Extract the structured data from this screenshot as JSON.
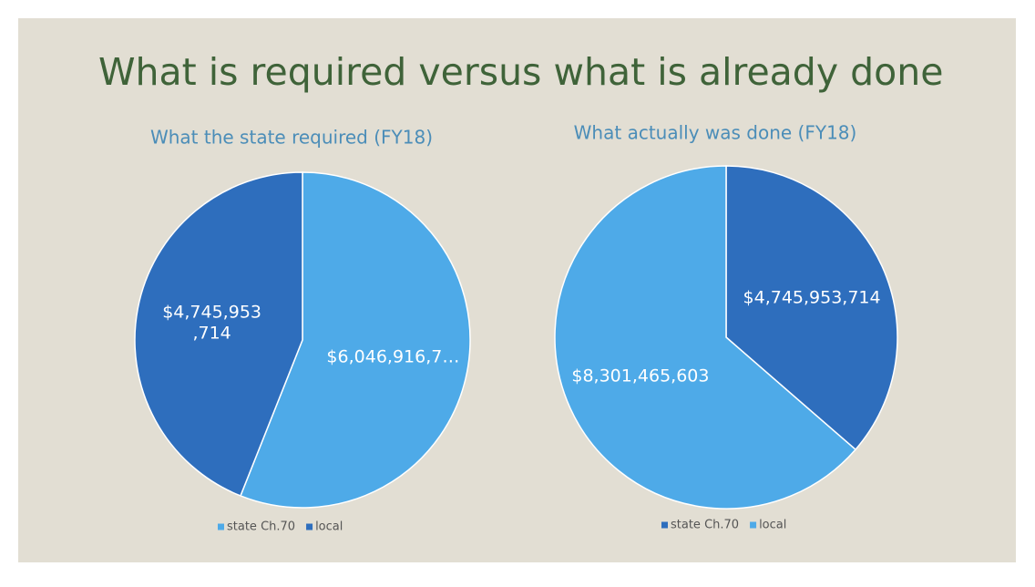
{
  "title": "What is required versus what is already done",
  "chart_data": [
    {
      "type": "pie",
      "title": "What the state required (FY18)",
      "categories": [
        "state Ch.70",
        "local"
      ],
      "values": [
        6046916700,
        4745953714
      ],
      "value_labels": [
        "$6,046,916,7…",
        "$4,745,953\n,714"
      ],
      "colors": [
        "#4eaae8",
        "#2e6ebd"
      ]
    },
    {
      "type": "pie",
      "title": "What actually was done (FY18)",
      "categories": [
        "state Ch.70",
        "local"
      ],
      "values": [
        4745953714,
        8301465603
      ],
      "value_labels": [
        "$4,745,953,714",
        "$8,301,465,603"
      ],
      "colors": [
        "#2e6ebd",
        "#4eaae8"
      ]
    }
  ]
}
